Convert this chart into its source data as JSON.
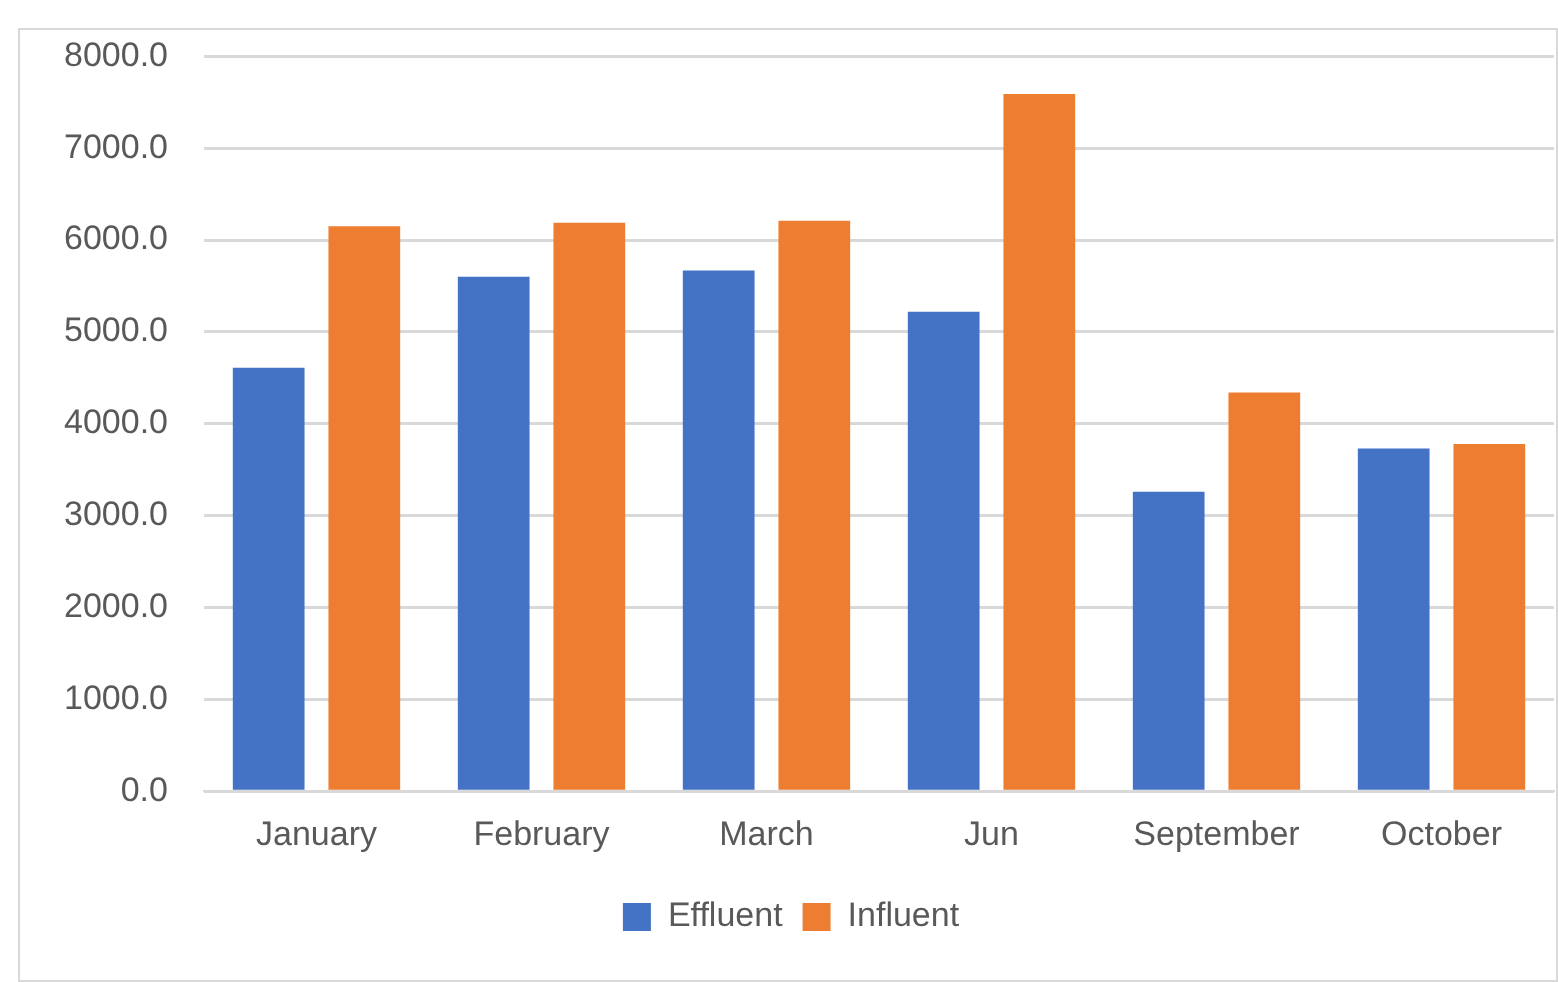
{
  "chart_data": {
    "type": "bar",
    "categories": [
      "January",
      "February",
      "March",
      "Jun",
      "September",
      "October"
    ],
    "series": [
      {
        "name": "Effluent",
        "color": "#4472c4",
        "values": [
          4610,
          5600,
          5670,
          5220,
          3260,
          3730
        ]
      },
      {
        "name": "Influent",
        "color": "#ed7d31",
        "values": [
          6150,
          6190,
          6210,
          7590,
          4340,
          3780
        ]
      }
    ],
    "ylim": [
      0,
      8000
    ],
    "yticks": [
      {
        "value": 0,
        "label": "0.0"
      },
      {
        "value": 1000,
        "label": "1000.0"
      },
      {
        "value": 2000,
        "label": "2000.0"
      },
      {
        "value": 3000,
        "label": "3000.0"
      },
      {
        "value": 4000,
        "label": "4000.0"
      },
      {
        "value": 5000,
        "label": "5000.0"
      },
      {
        "value": 6000,
        "label": "6000.0"
      },
      {
        "value": 7000,
        "label": "7000.0"
      },
      {
        "value": 8000,
        "label": "8000.0"
      }
    ],
    "grid": "y",
    "legend": "bottom"
  }
}
